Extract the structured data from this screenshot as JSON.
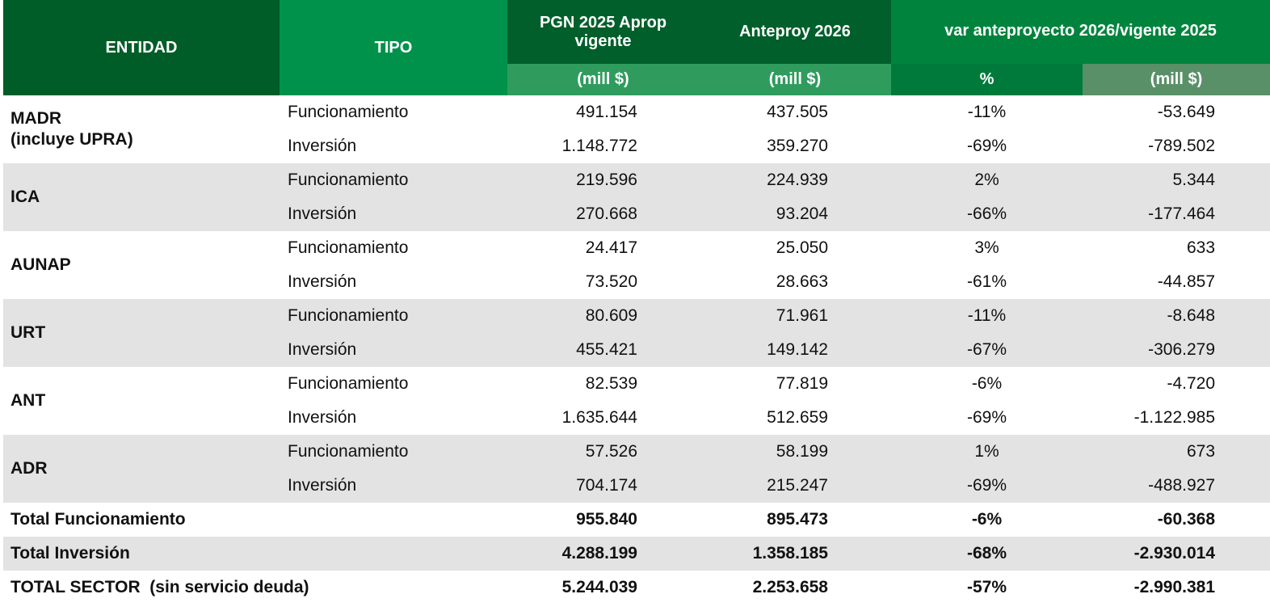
{
  "headers": {
    "entidad": "ENTIDAD",
    "tipo": "TIPO",
    "pgn": "PGN 2025 Aprop vigente",
    "anteproy": "Anteproy 2026",
    "var": "var anteproyecto 2026/vigente 2025",
    "sub_pgn": "(mill $)",
    "sub_ante": "(mill $)",
    "sub_pct": "%",
    "sub_var": "(mill $)"
  },
  "entities": [
    {
      "name": "MADR\n(incluye UPRA)",
      "rows": [
        {
          "tipo": "Funcionamiento",
          "pgn": "491.154",
          "ante": "437.505",
          "pct": "-11%",
          "var": "-53.649"
        },
        {
          "tipo": "Inversión",
          "pgn": "1.148.772",
          "ante": "359.270",
          "pct": "-69%",
          "var": "-789.502"
        }
      ]
    },
    {
      "name": "ICA",
      "rows": [
        {
          "tipo": "Funcionamiento",
          "pgn": "219.596",
          "ante": "224.939",
          "pct": "2%",
          "var": "5.344"
        },
        {
          "tipo": "Inversión",
          "pgn": "270.668",
          "ante": "93.204",
          "pct": "-66%",
          "var": "-177.464"
        }
      ]
    },
    {
      "name": "AUNAP",
      "rows": [
        {
          "tipo": "Funcionamiento",
          "pgn": "24.417",
          "ante": "25.050",
          "pct": "3%",
          "var": "633"
        },
        {
          "tipo": "Inversión",
          "pgn": "73.520",
          "ante": "28.663",
          "pct": "-61%",
          "var": "-44.857"
        }
      ]
    },
    {
      "name": "URT",
      "rows": [
        {
          "tipo": "Funcionamiento",
          "pgn": "80.609",
          "ante": "71.961",
          "pct": "-11%",
          "var": "-8.648"
        },
        {
          "tipo": "Inversión",
          "pgn": "455.421",
          "ante": "149.142",
          "pct": "-67%",
          "var": "-306.279"
        }
      ]
    },
    {
      "name": "ANT",
      "rows": [
        {
          "tipo": "Funcionamiento",
          "pgn": "82.539",
          "ante": "77.819",
          "pct": "-6%",
          "var": "-4.720"
        },
        {
          "tipo": "Inversión",
          "pgn": "1.635.644",
          "ante": "512.659",
          "pct": "-69%",
          "var": "-1.122.985"
        }
      ]
    },
    {
      "name": "ADR",
      "rows": [
        {
          "tipo": "Funcionamiento",
          "pgn": "57.526",
          "ante": "58.199",
          "pct": "1%",
          "var": "673"
        },
        {
          "tipo": "Inversión",
          "pgn": "704.174",
          "ante": "215.247",
          "pct": "-69%",
          "var": "-488.927"
        }
      ]
    }
  ],
  "totals": [
    {
      "label": "Total Funcionamiento",
      "pgn": "955.840",
      "ante": "895.473",
      "pct": "-6%",
      "var": "-60.368"
    },
    {
      "label": "Total Inversión",
      "pgn": "4.288.199",
      "ante": "1.358.185",
      "pct": "-68%",
      "var": "-2.930.014"
    },
    {
      "label": "TOTAL SECTOR  (sin servicio deuda)",
      "pgn": "5.244.039",
      "ante": "2.253.658",
      "pct": "-57%",
      "var": "-2.990.381"
    }
  ],
  "colors": {
    "header_dark": "#005d27",
    "header_mid": "#00924a",
    "row_shade": "#e3e3e3"
  }
}
